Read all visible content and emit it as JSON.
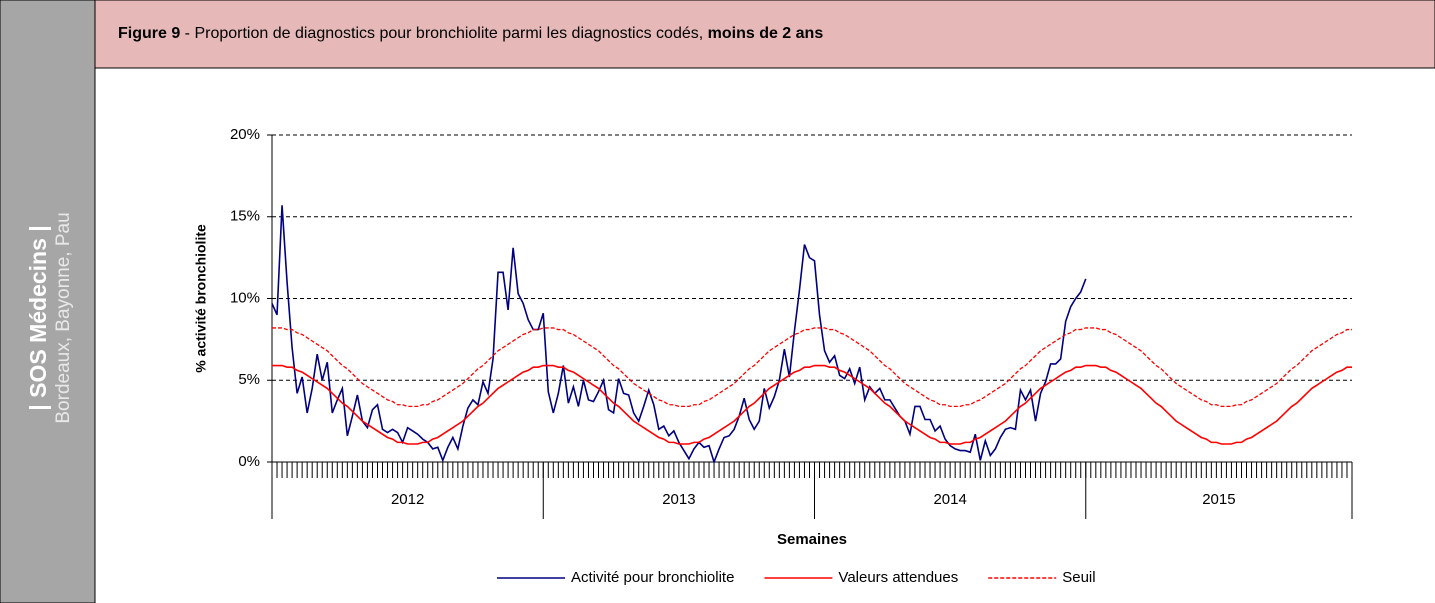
{
  "sidebar": {
    "title": "| SOS Médecins |",
    "subtitle": "Bordeaux, Bayonne, Pau"
  },
  "header": {
    "figure": "Figure 9",
    "text": " - Proportion de diagnostics pour bronchiolite parmi les diagnostics codés, ",
    "emphasis": "moins de 2 ans"
  },
  "chart_data": {
    "type": "line",
    "ylabel": "% activité bronchiolite",
    "xlabel": "Semaines",
    "ylim": [
      0,
      20
    ],
    "yticks": [
      {
        "value": 0,
        "label": "0%"
      },
      {
        "value": 5,
        "label": "5%"
      },
      {
        "value": 10,
        "label": "10%"
      },
      {
        "value": 15,
        "label": "15%"
      },
      {
        "value": 20,
        "label": "20%"
      }
    ],
    "grid": true,
    "legend": "bottom",
    "xgroups": [
      {
        "label": "2012",
        "count": 54
      },
      {
        "label": "2013",
        "count": 54
      },
      {
        "label": "2014",
        "count": 54
      },
      {
        "label": "2015",
        "count": 54
      }
    ],
    "categories": [
      null,
      null,
      null,
      null,
      null,
      null,
      null,
      null,
      null,
      null,
      null,
      null,
      null,
      null,
      null,
      null,
      null,
      null,
      null,
      null,
      null,
      null,
      null,
      null,
      null,
      null,
      null,
      null,
      null,
      null,
      null,
      null,
      null,
      null,
      null,
      null,
      null,
      null,
      null,
      null,
      null,
      null,
      null,
      null,
      null,
      null,
      null,
      null,
      null,
      null,
      null,
      null,
      null,
      null,
      null,
      null,
      null,
      null,
      null,
      null,
      null,
      null,
      null,
      null,
      null,
      null,
      null,
      null,
      null,
      null,
      null,
      null,
      null,
      null,
      null,
      null,
      null,
      null,
      null,
      null,
      null,
      null,
      null,
      null,
      null,
      null,
      null,
      null,
      null,
      null,
      null,
      null,
      null,
      null,
      null,
      null,
      null,
      null,
      null,
      null,
      null,
      null,
      null,
      null,
      null,
      null,
      null,
      null,
      null,
      null,
      null,
      null,
      null,
      null,
      null,
      null,
      null,
      null,
      null,
      null,
      null,
      null,
      null,
      null,
      null,
      null,
      null,
      null,
      null,
      null,
      null,
      null,
      null,
      null,
      null,
      null,
      null,
      null,
      null,
      null,
      null,
      null,
      null,
      null,
      null,
      null,
      null,
      null,
      null,
      null,
      null,
      null,
      null,
      null,
      null,
      null,
      null,
      null,
      null,
      null,
      null,
      null,
      null,
      null,
      null,
      null,
      null,
      null,
      null,
      null,
      null,
      null,
      null,
      null,
      null,
      null,
      null,
      null,
      null,
      null,
      null,
      null,
      null,
      null,
      null,
      null,
      null,
      null,
      null,
      null,
      null,
      null,
      null,
      null,
      null,
      null,
      null,
      null,
      null,
      null,
      null,
      null,
      null,
      null,
      null,
      null,
      null,
      null,
      null,
      null,
      null,
      null,
      null,
      null,
      null,
      null
    ],
    "series": [
      {
        "name": "Activité pour bronchiolite",
        "color": "#000080",
        "dash": false,
        "values": [
          9.7,
          9.0,
          15.7,
          11,
          7,
          4.2,
          5.2,
          3.0,
          4.5,
          6.6,
          5.0,
          6.1,
          3.0,
          3.8,
          4.5,
          1.6,
          2.8,
          4.1,
          2.5,
          2.1,
          3.2,
          3.5,
          2.0,
          1.8,
          2.0,
          1.8,
          1.2,
          2.1,
          1.9,
          1.7,
          1.4,
          1.2,
          0.8,
          0.9,
          0.1,
          0.9,
          1.5,
          0.8,
          2.2,
          3.3,
          3.8,
          3.5,
          4.9,
          4.2,
          6.3,
          11.6,
          11.6,
          9.3,
          13.1,
          10.3,
          9.7,
          8.7,
          8.1,
          8.1,
          9.1,
          4.3,
          3.0,
          4.2,
          5.9,
          3.6,
          4.6,
          3.4,
          5.0,
          3.8,
          3.7,
          4.3,
          5.0,
          3.2,
          3.0,
          5.1,
          4.2,
          4.1,
          3.0,
          2.5,
          3.4,
          4.4,
          3.5,
          2.0,
          2.2,
          1.6,
          1.9,
          1.2,
          0.7,
          0.2,
          0.8,
          1.2,
          0.9,
          1.0,
          0.0,
          0.8,
          1.5,
          1.6,
          2.0,
          2.8,
          3.9,
          2.6,
          2.0,
          2.5,
          4.5,
          3.3,
          4.0,
          5.0,
          6.9,
          5.2,
          8.0,
          10.5,
          13.3,
          12.5,
          12.3,
          9.0,
          6.8,
          6.1,
          6.5,
          5.3,
          5.1,
          5.7,
          4.8,
          5.8,
          3.8,
          4.6,
          4.2,
          4.5,
          3.8,
          3.8,
          3.3,
          2.8,
          2.5,
          1.7,
          3.4,
          3.4,
          2.6,
          2.6,
          1.9,
          2.2,
          1.4,
          1.0,
          0.8,
          0.7,
          0.7,
          0.6,
          1.7,
          0.1,
          1.3,
          0.4,
          0.8,
          1.5,
          2.0,
          2.1,
          2.0,
          4.4,
          3.8,
          4.4,
          2.5,
          4.2,
          4.9,
          6.0,
          6.0,
          6.3,
          8.6,
          9.5,
          10.0,
          10.4,
          11.2,
          null,
          null,
          null,
          null,
          null,
          null,
          null,
          null,
          null,
          null,
          null,
          null,
          null,
          null,
          null,
          null,
          null,
          null,
          null,
          null,
          null,
          null,
          null,
          null,
          null,
          null,
          null,
          null,
          null,
          null,
          null,
          null,
          null,
          null,
          null,
          null,
          null,
          null,
          null,
          null,
          null,
          null,
          null,
          null,
          null,
          null,
          null,
          null,
          null,
          null,
          null,
          null,
          null
        ]
      },
      {
        "name": "Valeurs attendues",
        "color": "#ff0000",
        "dash": false,
        "values": [
          5.9,
          5.9,
          5.9,
          5.8,
          5.8,
          5.6,
          5.5,
          5.3,
          5.1,
          4.9,
          4.7,
          4.5,
          4.2,
          3.9,
          3.6,
          3.4,
          3.1,
          2.8,
          2.5,
          2.3,
          2.1,
          1.9,
          1.7,
          1.5,
          1.4,
          1.2,
          1.2,
          1.1,
          1.1,
          1.1,
          1.2,
          1.2,
          1.4,
          1.5,
          1.7,
          1.9,
          2.1,
          2.3,
          2.5,
          2.8,
          3.1,
          3.4,
          3.6,
          3.9,
          4.2,
          4.5,
          4.7,
          4.9,
          5.1,
          5.3,
          5.5,
          5.6,
          5.8,
          5.8,
          5.9,
          5.9,
          5.9,
          5.8,
          5.8,
          5.6,
          5.5,
          5.3,
          5.1,
          4.9,
          4.7,
          4.5,
          4.2,
          3.9,
          3.6,
          3.4,
          3.1,
          2.8,
          2.5,
          2.3,
          2.1,
          1.9,
          1.7,
          1.5,
          1.4,
          1.2,
          1.2,
          1.1,
          1.1,
          1.1,
          1.2,
          1.2,
          1.4,
          1.5,
          1.7,
          1.9,
          2.1,
          2.3,
          2.5,
          2.8,
          3.1,
          3.4,
          3.6,
          3.9,
          4.2,
          4.5,
          4.7,
          4.9,
          5.1,
          5.3,
          5.5,
          5.6,
          5.8,
          5.8,
          5.9,
          5.9,
          5.9,
          5.8,
          5.8,
          5.6,
          5.5,
          5.3,
          5.1,
          4.9,
          4.7,
          4.5,
          4.2,
          3.9,
          3.6,
          3.4,
          3.1,
          2.8,
          2.5,
          2.3,
          2.1,
          1.9,
          1.7,
          1.5,
          1.4,
          1.2,
          1.2,
          1.1,
          1.1,
          1.1,
          1.2,
          1.2,
          1.4,
          1.5,
          1.7,
          1.9,
          2.1,
          2.3,
          2.5,
          2.8,
          3.1,
          3.4,
          3.6,
          3.9,
          4.2,
          4.5,
          4.7,
          4.9,
          5.1,
          5.3,
          5.5,
          5.6,
          5.8,
          5.8,
          5.9,
          5.9,
          5.9,
          5.8,
          5.8,
          5.6,
          5.5,
          5.3,
          5.1,
          4.9,
          4.7,
          4.5,
          4.2,
          3.9,
          3.6,
          3.4,
          3.1,
          2.8,
          2.5,
          2.3,
          2.1,
          1.9,
          1.7,
          1.5,
          1.4,
          1.2,
          1.2,
          1.1,
          1.1,
          1.1,
          1.2,
          1.2,
          1.4,
          1.5,
          1.7,
          1.9,
          2.1,
          2.3,
          2.5,
          2.8,
          3.1,
          3.4,
          3.6,
          3.9,
          4.2,
          4.5,
          4.7,
          4.9,
          5.1,
          5.3,
          5.5,
          5.6,
          5.8,
          5.8
        ]
      },
      {
        "name": "Seuil",
        "color": "#ff0000",
        "dash": true,
        "values": [
          8.2,
          8.2,
          8.2,
          8.1,
          8.1,
          7.9,
          7.8,
          7.6,
          7.4,
          7.2,
          7.0,
          6.8,
          6.5,
          6.2,
          5.9,
          5.7,
          5.4,
          5.1,
          4.8,
          4.6,
          4.4,
          4.2,
          4.0,
          3.8,
          3.7,
          3.5,
          3.5,
          3.4,
          3.4,
          3.4,
          3.5,
          3.5,
          3.7,
          3.8,
          4.0,
          4.2,
          4.4,
          4.6,
          4.8,
          5.1,
          5.4,
          5.7,
          5.9,
          6.2,
          6.5,
          6.8,
          7.0,
          7.2,
          7.4,
          7.6,
          7.8,
          7.9,
          8.1,
          8.1,
          8.2,
          8.2,
          8.2,
          8.1,
          8.1,
          7.9,
          7.8,
          7.6,
          7.4,
          7.2,
          7.0,
          6.8,
          6.5,
          6.2,
          5.9,
          5.7,
          5.4,
          5.1,
          4.8,
          4.6,
          4.4,
          4.2,
          4.0,
          3.8,
          3.7,
          3.5,
          3.5,
          3.4,
          3.4,
          3.4,
          3.5,
          3.5,
          3.7,
          3.8,
          4.0,
          4.2,
          4.4,
          4.6,
          4.8,
          5.1,
          5.4,
          5.7,
          5.9,
          6.2,
          6.5,
          6.8,
          7.0,
          7.2,
          7.4,
          7.6,
          7.8,
          7.9,
          8.1,
          8.1,
          8.2,
          8.2,
          8.2,
          8.1,
          8.1,
          7.9,
          7.8,
          7.6,
          7.4,
          7.2,
          7.0,
          6.8,
          6.5,
          6.2,
          5.9,
          5.7,
          5.4,
          5.1,
          4.8,
          4.6,
          4.4,
          4.2,
          4.0,
          3.8,
          3.7,
          3.5,
          3.5,
          3.4,
          3.4,
          3.4,
          3.5,
          3.5,
          3.7,
          3.8,
          4.0,
          4.2,
          4.4,
          4.6,
          4.8,
          5.1,
          5.4,
          5.7,
          5.9,
          6.2,
          6.5,
          6.8,
          7.0,
          7.2,
          7.4,
          7.6,
          7.8,
          7.9,
          8.1,
          8.1,
          8.2,
          8.2,
          8.2,
          8.1,
          8.1,
          7.9,
          7.8,
          7.6,
          7.4,
          7.2,
          7.0,
          6.8,
          6.5,
          6.2,
          5.9,
          5.7,
          5.4,
          5.1,
          4.8,
          4.6,
          4.4,
          4.2,
          4.0,
          3.8,
          3.7,
          3.5,
          3.5,
          3.4,
          3.4,
          3.4,
          3.5,
          3.5,
          3.7,
          3.8,
          4.0,
          4.2,
          4.4,
          4.6,
          4.8,
          5.1,
          5.4,
          5.7,
          5.9,
          6.2,
          6.5,
          6.8,
          7.0,
          7.2,
          7.4,
          7.6,
          7.8,
          7.9,
          8.1,
          8.1
        ]
      }
    ]
  }
}
